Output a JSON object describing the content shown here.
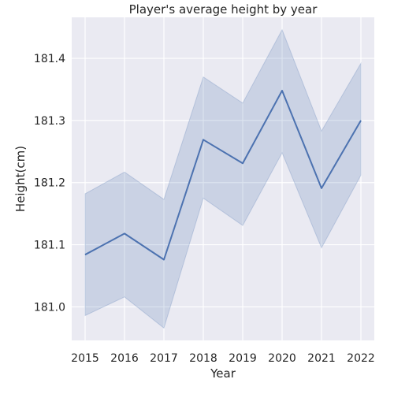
{
  "chart_data": {
    "type": "line",
    "title": "Player's average height by year",
    "xlabel": "Year",
    "ylabel": "Height(cm)",
    "categories": [
      "2015",
      "2016",
      "2017",
      "2018",
      "2019",
      "2020",
      "2021",
      "2022"
    ],
    "series": [
      {
        "values": [
          181.084,
          181.118,
          181.076,
          181.269,
          181.231,
          181.348,
          181.191,
          181.3
        ],
        "ci_lower": [
          180.986,
          181.016,
          180.966,
          181.175,
          181.131,
          181.248,
          181.095,
          181.212
        ],
        "ci_upper": [
          181.182,
          181.217,
          181.173,
          181.37,
          181.328,
          181.446,
          181.283,
          181.392
        ]
      }
    ],
    "ylim": [
      180.946,
      181.466
    ],
    "yticks": [
      181.0,
      181.1,
      181.2,
      181.3,
      181.4
    ],
    "ytick_labels": [
      "181.0",
      "181.1",
      "181.2",
      "181.3",
      "181.4"
    ],
    "grid": true,
    "style": "seaborn-darkgrid",
    "colors": {
      "background": "#eaeaf2",
      "grid": "#ffffff",
      "line": "#4c72b0",
      "band": "#4c72b0"
    }
  }
}
